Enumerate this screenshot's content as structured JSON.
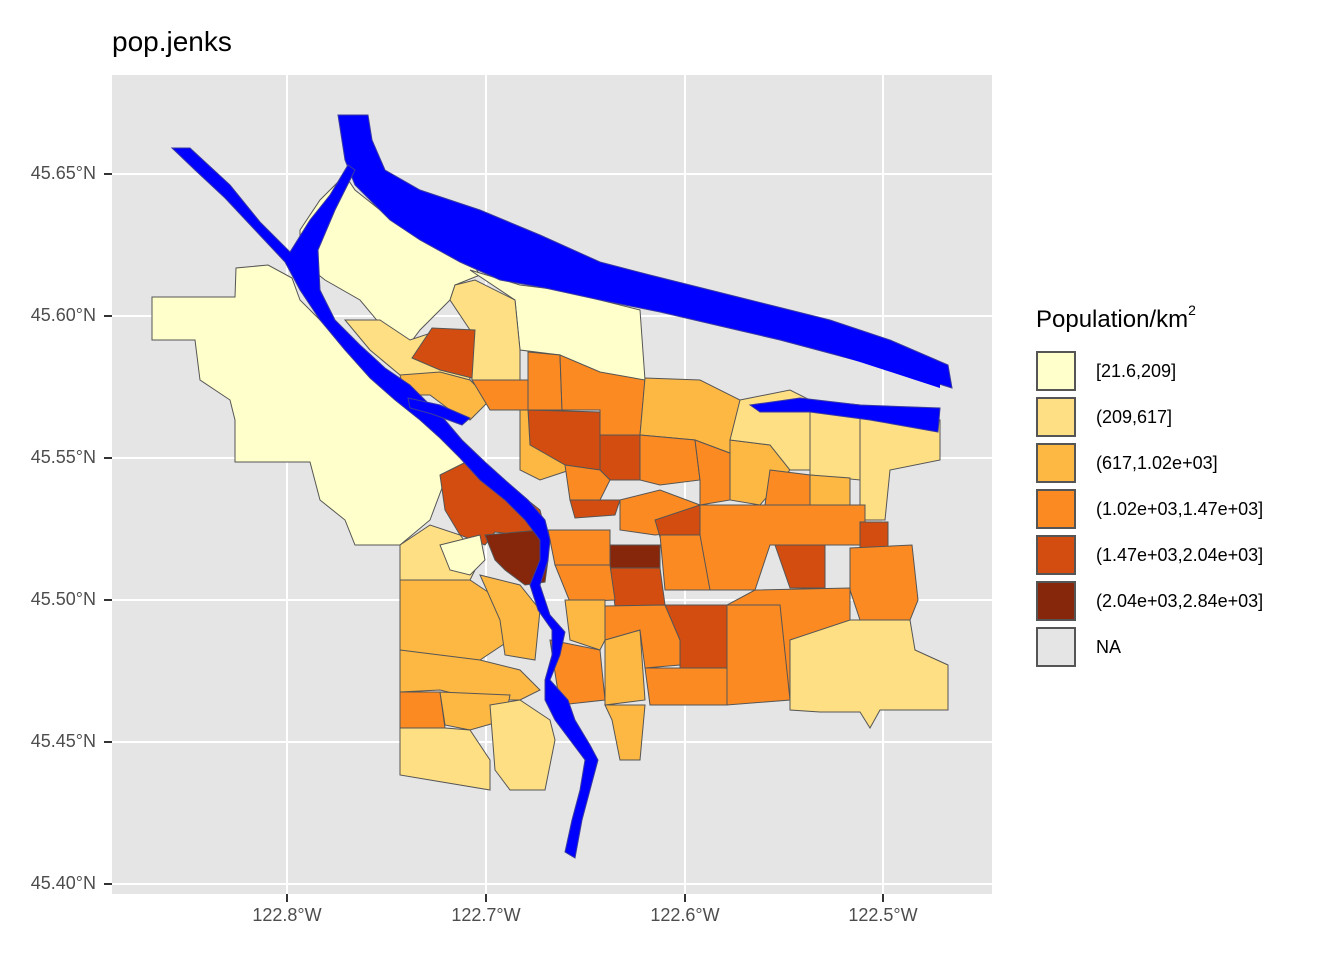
{
  "map": {
    "title": "pop.jenks",
    "y_ticks": [
      "45.65°N",
      "45.60°N",
      "45.55°N",
      "45.50°N",
      "45.45°N",
      "45.40°N"
    ],
    "x_ticks": [
      "122.8°W",
      "122.7°W",
      "122.6°W",
      "122.5°W"
    ],
    "colors": {
      "panel": "#e5e5e5",
      "grid": "#ffffff",
      "river": "#0000ff",
      "border": "#555555"
    }
  },
  "legend": {
    "title": "Population/km",
    "title_sup": "2",
    "items": [
      {
        "label": "[21.6,209]",
        "color": "#ffffcc"
      },
      {
        "label": "(209,617]",
        "color": "#fedf83"
      },
      {
        "label": "(617,1.02e+03]",
        "color": "#fdb844"
      },
      {
        "label": "(1.02e+03,1.47e+03]",
        "color": "#fc8a22"
      },
      {
        "label": "(1.47e+03,2.04e+03]",
        "color": "#d44d10"
      },
      {
        "label": "(2.04e+03,2.84e+03]",
        "color": "#86260a"
      },
      {
        "label": "NA",
        "color": "#e5e5e5"
      }
    ]
  }
}
